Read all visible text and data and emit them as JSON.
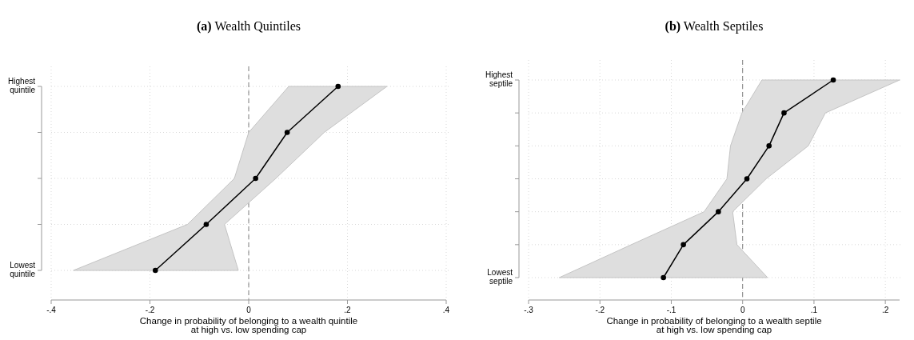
{
  "chart_data": [
    {
      "type": "line",
      "title": "(a) Wealth Quintiles",
      "xlabel": "Change in probability of belonging to a wealth quintile at high vs. low spending cap",
      "orientation": "horizontal",
      "categories": [
        "Highest quintile",
        null,
        null,
        null,
        "Lowest quintile"
      ],
      "series": [
        {
          "color": "#000000",
          "values": [
            0.181,
            0.078,
            0.014,
            -0.086,
            -0.189
          ],
          "lower": [
            0.081,
            0.0,
            -0.029,
            -0.124,
            -0.355
          ],
          "upper": [
            0.28,
            0.153,
            0.055,
            -0.049,
            -0.021
          ]
        }
      ],
      "xlim": [
        -0.4,
        0.4
      ],
      "xticks": [
        {
          "value": -0.4,
          "label": "-.4"
        },
        {
          "value": -0.2,
          "label": "-.2"
        },
        0,
        {
          "value": 0.2,
          "label": ".2"
        },
        {
          "value": 0.4,
          "label": ".4"
        }
      ],
      "ref_lines": [
        {
          "axis": "x",
          "value": 0,
          "line_style": "dashed",
          "color": "#7f7f7f"
        }
      ],
      "grid": true,
      "marker": "circle",
      "line_style": "solid"
    },
    {
      "type": "line",
      "title": "(b) Wealth Septiles",
      "xlabel": "Change in probability of belonging to a wealth septile at high vs. low spending cap",
      "orientation": "horizontal",
      "categories": [
        "Highest septile",
        null,
        null,
        null,
        null,
        null,
        "Lowest septile"
      ],
      "series": [
        {
          "color": "#000000",
          "values": [
            0.127,
            0.058,
            0.037,
            0.006,
            -0.034,
            -0.083,
            -0.111
          ],
          "lower": [
            0.027,
            -0.001,
            -0.017,
            -0.022,
            -0.054,
            -0.156,
            -0.257
          ],
          "upper": [
            0.22,
            0.116,
            0.092,
            0.033,
            -0.014,
            -0.008,
            0.035
          ]
        }
      ],
      "xlim": [
        -0.3,
        0.22
      ],
      "xticks": [
        {
          "value": -0.3,
          "label": "-.3"
        },
        {
          "value": -0.2,
          "label": "-.2"
        },
        {
          "value": -0.1,
          "label": "-.1"
        },
        0,
        {
          "value": 0.1,
          "label": ".1"
        },
        {
          "value": 0.2,
          "label": ".2"
        }
      ],
      "ref_lines": [
        {
          "axis": "x",
          "value": 0,
          "line_style": "dashed",
          "color": "#7f7f7f"
        }
      ],
      "grid": true,
      "marker": "circle",
      "line_style": "solid"
    }
  ]
}
